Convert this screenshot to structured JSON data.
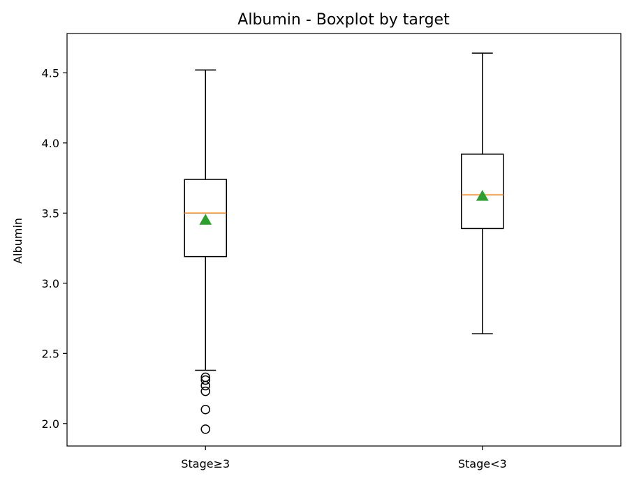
{
  "chart_data": {
    "type": "boxplot",
    "title": "Albumin - Boxplot by target",
    "xlabel": "",
    "ylabel": "Albumin",
    "ylim": [
      1.84,
      4.78
    ],
    "yticks": [
      2.0,
      2.5,
      3.0,
      3.5,
      4.0,
      4.5
    ],
    "ytick_labels": [
      "2.0",
      "2.5",
      "3.0",
      "3.5",
      "4.0",
      "4.5"
    ],
    "categories": [
      "Stage≥3",
      "Stage<3"
    ],
    "boxes": [
      {
        "whisker_low": 2.38,
        "q1": 3.19,
        "median": 3.5,
        "q3": 3.74,
        "whisker_high": 4.52,
        "mean": 3.45,
        "outliers": [
          2.33,
          2.31,
          2.27,
          2.23,
          2.1,
          1.96
        ]
      },
      {
        "whisker_low": 2.64,
        "q1": 3.39,
        "median": 3.63,
        "q3": 3.92,
        "whisker_high": 4.64,
        "mean": 3.62,
        "outliers": []
      }
    ],
    "colors": {
      "box": "#000000",
      "median": "#ff7f0e",
      "mean": "#2ca02c"
    },
    "grid": false
  }
}
